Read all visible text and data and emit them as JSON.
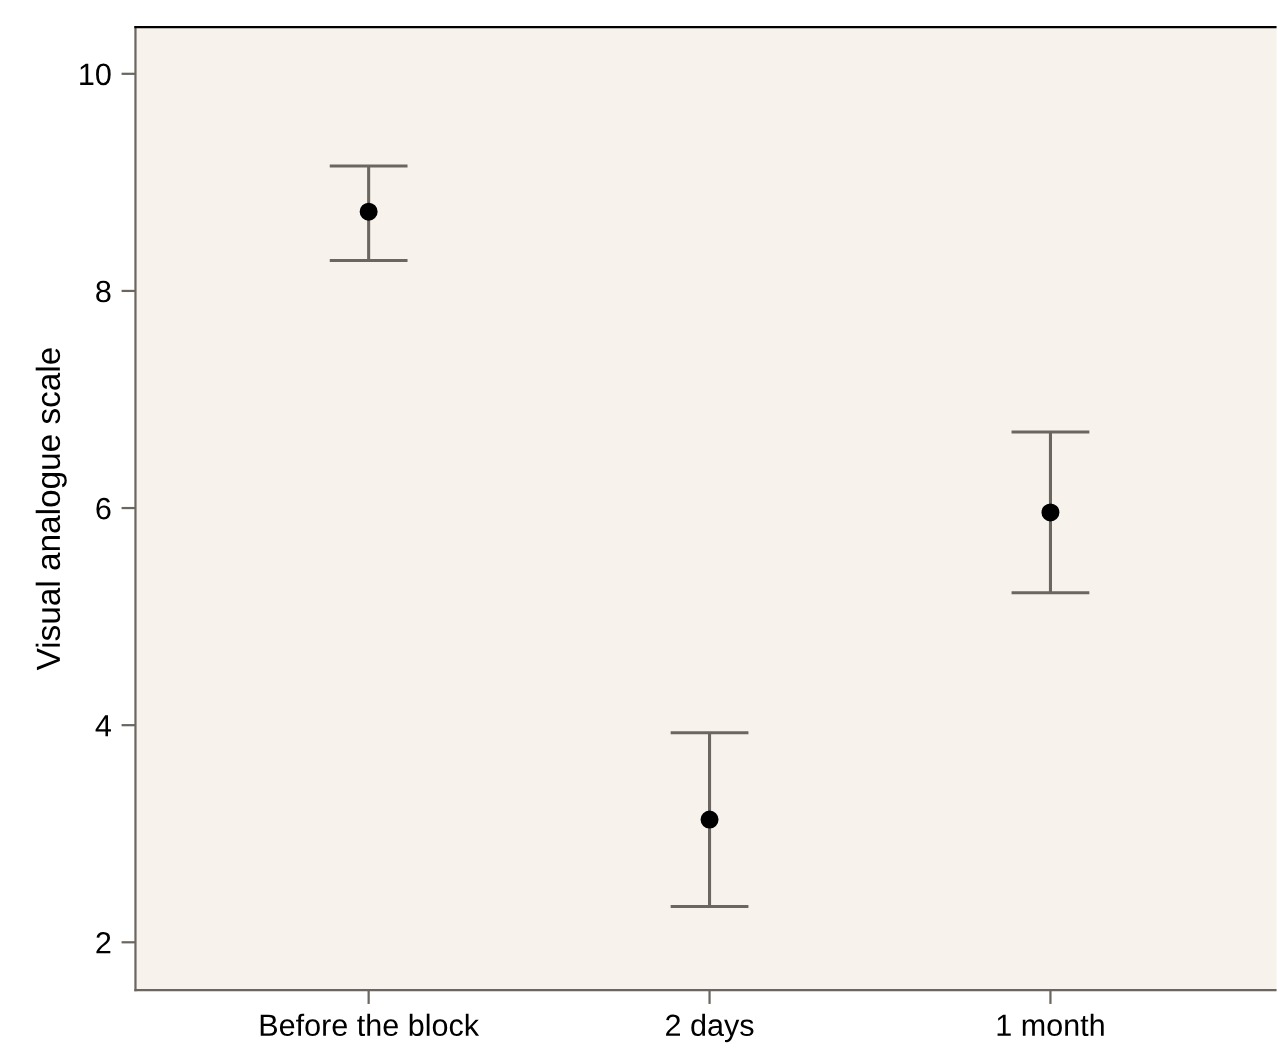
{
  "chart_data": {
    "type": "scatter",
    "ylabel": "Visual analogue scale",
    "categories": [
      "Before the block",
      "2 days",
      "1 month"
    ],
    "values": [
      8.73,
      3.13,
      5.96
    ],
    "errors": [
      [
        8.28,
        9.15
      ],
      [
        2.33,
        3.93
      ],
      [
        5.22,
        6.7
      ]
    ],
    "color": "#000000",
    "marker": "circle",
    "ylim": [
      1.56,
      10.43
    ],
    "yticks": [
      2,
      4,
      6,
      8,
      10
    ],
    "grid": false,
    "legend": false
  }
}
